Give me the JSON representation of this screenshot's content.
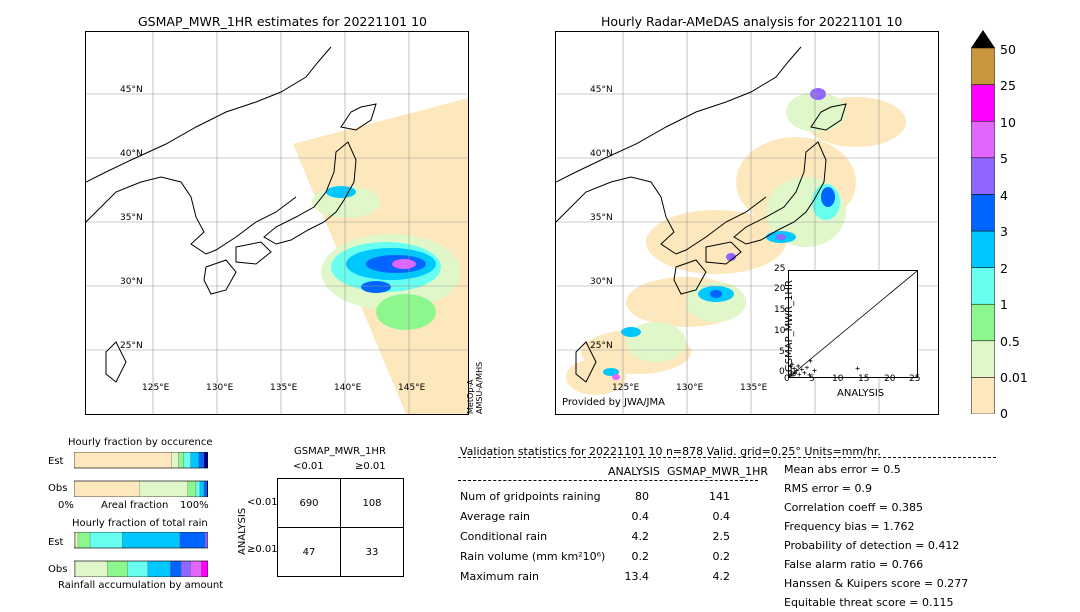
{
  "left_map": {
    "title": "GSMAP_MWR_1HR estimates for 20221101 10",
    "lat_labels": [
      "45°N",
      "40°N",
      "35°N",
      "30°N",
      "25°N"
    ],
    "lon_labels": [
      "125°E",
      "130°E",
      "135°E",
      "140°E",
      "145°E"
    ],
    "sensor_note": "MetOp-A\nAMSU-A/MHS"
  },
  "right_map": {
    "title": "Hourly Radar-AMeDAS analysis for 20221101 10",
    "lat_labels": [
      "45°N",
      "40°N",
      "35°N",
      "30°N",
      "25°N"
    ],
    "lon_labels": [
      "125°E",
      "130°E",
      "135°E"
    ],
    "credit": "Provided by JWA/JMA"
  },
  "colorbar": {
    "ticks": [
      "0",
      "0.01",
      "0.5",
      "1",
      "2",
      "3",
      "4",
      "5",
      "10",
      "25",
      "50"
    ],
    "colors": [
      "#fde8bd",
      "#dff7c9",
      "#8cf78c",
      "#66fff0",
      "#00c8ff",
      "#0064ff",
      "#8f66ff",
      "#e066ff",
      "#ff00ff",
      "#c8963c"
    ],
    "extend_color": "#000000"
  },
  "chart_data": [
    {
      "type": "scatter",
      "title": "",
      "xlabel": "ANALYSIS",
      "ylabel": "GSMAP_MWR_1HR",
      "xlim": [
        0,
        25
      ],
      "ylim": [
        0,
        25
      ],
      "xticks": [
        "0",
        "5",
        "10",
        "15",
        "20",
        "25"
      ],
      "yticks": [
        "0",
        "5",
        "10",
        "15",
        "20",
        "25"
      ],
      "points": [
        [
          0.2,
          0.3
        ],
        [
          0.5,
          1.2
        ],
        [
          0.8,
          0.4
        ],
        [
          1.0,
          2.0
        ],
        [
          1.2,
          0.8
        ],
        [
          1.5,
          1.5
        ],
        [
          0.3,
          2.5
        ],
        [
          2.0,
          0.6
        ],
        [
          2.5,
          1.8
        ],
        [
          0.6,
          3.0
        ],
        [
          1.8,
          2.6
        ],
        [
          3.0,
          1.0
        ],
        [
          3.5,
          2.2
        ],
        [
          4.2,
          3.8
        ],
        [
          4.0,
          0.5
        ],
        [
          5.0,
          1.5
        ],
        [
          13.4,
          2.0
        ],
        [
          0.1,
          0.1
        ],
        [
          0.4,
          0.7
        ],
        [
          1.1,
          1.1
        ]
      ]
    },
    {
      "type": "bar",
      "title": "Hourly fraction by occurence",
      "rows": [
        "Est",
        "Obs"
      ],
      "xlabel_left": "0%",
      "xlabel_mid": "Areal fraction",
      "xlabel_right": "100%",
      "series": [
        {
          "values": [
            0.73,
            0.49
          ]
        },
        {
          "values": [
            0.05,
            0.36
          ]
        },
        {
          "values": [
            0.04,
            0.06
          ]
        },
        {
          "values": [
            0.05,
            0.03
          ]
        },
        {
          "values": [
            0.06,
            0.03
          ]
        },
        {
          "values": [
            0.04,
            0.02
          ]
        },
        {
          "values": [
            0.03,
            0.01
          ]
        }
      ]
    },
    {
      "type": "bar",
      "title": "Hourly fraction of total rain",
      "rows": [
        "Est",
        "Obs"
      ],
      "xlabel_mid": "Rainfall accumulation by amount",
      "series": [
        {
          "values": [
            0.01,
            0.01
          ]
        },
        {
          "values": [
            0.02,
            0.24
          ]
        },
        {
          "values": [
            0.09,
            0.15
          ]
        },
        {
          "values": [
            0.24,
            0.15
          ]
        },
        {
          "values": [
            0.43,
            0.17
          ]
        },
        {
          "values": [
            0.19,
            0.08
          ]
        },
        {
          "values": [
            0.02,
            0.07
          ]
        },
        {
          "values": [
            0.0,
            0.08
          ]
        },
        {
          "values": [
            0.0,
            0.05
          ]
        }
      ]
    }
  ],
  "contingency": {
    "title": "GSMAP_MWR_1HR",
    "col_lt": "<0.01",
    "col_ge": "≥0.01",
    "side": "ANALYSIS",
    "row_lt": "<0.01",
    "row_ge": "≥0.01",
    "cells": [
      "690",
      "108",
      "47",
      "33"
    ]
  },
  "validation": {
    "header": "Validation statistics for 20221101 10  n=878 Valid. grid=0.25° Units=mm/hr.",
    "col1": "ANALYSIS",
    "col2": "GSMAP_MWR_1HR",
    "rows": [
      {
        "label": "Num of gridpoints raining",
        "a": "80",
        "b": "141"
      },
      {
        "label": "Average rain",
        "a": "0.4",
        "b": "0.4"
      },
      {
        "label": "Conditional rain",
        "a": "4.2",
        "b": "2.5"
      },
      {
        "label": "Rain volume (mm km²10⁶)",
        "a": "0.2",
        "b": "0.2"
      },
      {
        "label": "Maximum rain",
        "a": "13.4",
        "b": "4.2"
      }
    ],
    "scores": [
      "Mean abs error =    0.5",
      "RMS error =    0.9",
      "Correlation coeff =  0.385",
      "Frequency bias =  1.762",
      "Probability of detection =  0.412",
      "False alarm ratio =  0.766",
      "Hanssen & Kuipers score =  0.277",
      "Equitable threat score =  0.115"
    ]
  }
}
